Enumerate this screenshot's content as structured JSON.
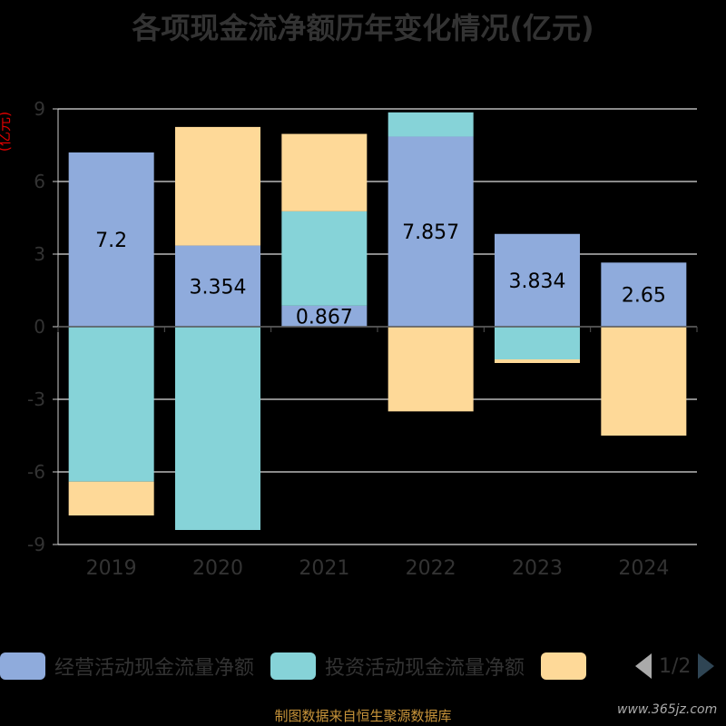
{
  "title": "各项现金流净额历年变化情况(亿元)",
  "source": "制图数据来自恒生聚源数据库",
  "watermark": "www.365jz.com",
  "legend_page": "1/2",
  "chart_data": {
    "type": "bar",
    "stacked": true,
    "ylabel": "(亿元)",
    "ylim": [
      -9,
      9
    ],
    "yticks": [
      -9,
      -6,
      -3,
      0,
      3,
      6,
      9
    ],
    "categories": [
      "2019",
      "2020",
      "2021",
      "2022",
      "2023",
      "2024"
    ],
    "series": [
      {
        "name": "经营活动现金流量净额",
        "color": "#8fabdc",
        "values": [
          7.2,
          3.354,
          0.867,
          7.857,
          3.834,
          2.65
        ],
        "labels": [
          "7.2",
          "3.354",
          "0.867",
          "7.857",
          "3.834",
          "2.65"
        ]
      },
      {
        "name": "投资活动现金流量净额",
        "color": "#86d3d8",
        "values": [
          -6.4,
          -8.4,
          3.9,
          1.0,
          -1.35,
          0.0
        ]
      },
      {
        "name": "",
        "color": "#fed998",
        "values": [
          -1.4,
          4.9,
          3.2,
          -3.5,
          -0.15,
          -4.5
        ]
      }
    ]
  }
}
